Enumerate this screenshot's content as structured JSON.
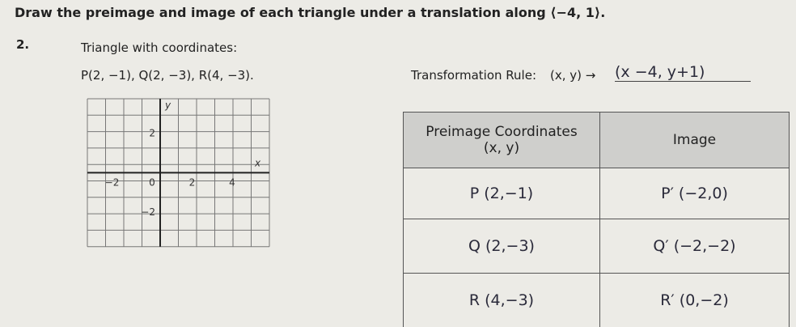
{
  "instruction": "Draw the preimage and image of each triangle under a translation along ⟨−4, 1⟩.",
  "problem": {
    "number": "2.",
    "description": "Triangle with coordinates:",
    "coordinates": "P(2, −1), Q(2, −3), R(4, −3).",
    "rule_label": "Transformation Rule:",
    "rule_input": "(x, y) →",
    "rule_answer": "(x −4, y+1)"
  },
  "grid": {
    "x_axis_label": "x",
    "y_axis_label": "y",
    "x_tick_labels": [
      "−2",
      "0",
      "2",
      "4"
    ],
    "y_tick_labels": [
      "2",
      "−2"
    ]
  },
  "table": {
    "header": [
      [
        "Preimage Coordinates",
        "(x, y)"
      ],
      [
        "Image"
      ]
    ],
    "rows": [
      [
        "P (2,−1)",
        "P′ (−2,0)"
      ],
      [
        "Q (2,−3)",
        "Q′ (−2,−2)"
      ],
      [
        "R (4,−3)",
        "R′ (0,−2)"
      ]
    ]
  }
}
